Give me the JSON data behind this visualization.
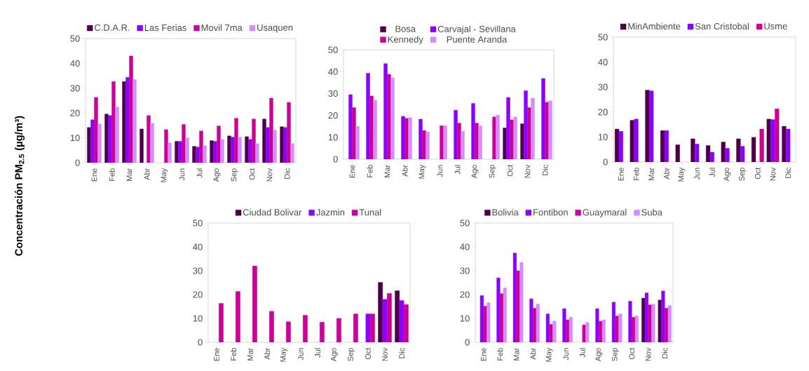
{
  "chart_data": [
    {
      "type": "bar",
      "ylabel": "Concentración PM$_{2.5}$ (µg/m³)",
      "categories": [
        "Ene",
        "Feb",
        "Mar",
        "Abr",
        "May",
        "Jun",
        "Jul",
        "Ago",
        "Sep",
        "Oct",
        "Nov",
        "Dic"
      ],
      "ylim": [
        0,
        50
      ],
      "yticks": [
        0,
        10,
        20,
        30,
        40,
        50
      ],
      "legend": "top",
      "series": [
        {
          "name": "C.D.A.R.",
          "color": "#4d0047",
          "values": [
            14.2,
            19.6,
            32.7,
            13.6,
            null,
            8.6,
            6.6,
            8.9,
            10.8,
            10.5,
            17.6,
            14.5
          ]
        },
        {
          "name": "Las Ferias",
          "color": "#8b00ff",
          "values": [
            17.3,
            19.0,
            34.4,
            null,
            null,
            8.6,
            6.3,
            8.6,
            10.3,
            9.4,
            14.2,
            14.2
          ]
        },
        {
          "name": "Movil 7ma",
          "color": "#cc0099",
          "values": [
            26.3,
            32.7,
            43.0,
            19.0,
            13.3,
            15.4,
            12.8,
            14.8,
            17.9,
            17.6,
            26.0,
            24.3
          ]
        },
        {
          "name": "Usaquen",
          "color": "#d68cff",
          "values": [
            15.6,
            22.4,
            33.5,
            15.9,
            8.0,
            10.0,
            6.9,
            9.4,
            10.3,
            7.7,
            13.1,
            7.7
          ]
        }
      ]
    },
    {
      "type": "bar",
      "categories": [
        "Ene",
        "Feb",
        "Mar",
        "Abr",
        "May",
        "Jun",
        "Jul",
        "Ago",
        "Sep",
        "Oct",
        "Nov",
        "Dic"
      ],
      "ylim": [
        0,
        50
      ],
      "yticks": [
        0,
        10,
        20,
        30,
        40,
        50
      ],
      "legend": "top",
      "series": [
        {
          "name": "Bosa",
          "color": "#4d0047",
          "values": [
            null,
            null,
            null,
            null,
            null,
            null,
            null,
            null,
            null,
            14.3,
            16.2,
            null
          ]
        },
        {
          "name": "Carvajal - Sevillana",
          "color": "#8b00ff",
          "values": [
            29.5,
            39.3,
            43.7,
            19.6,
            18.3,
            null,
            22.4,
            25.5,
            null,
            28.2,
            31.3,
            36.9
          ]
        },
        {
          "name": "Kennedy",
          "color": "#cc0099",
          "values": [
            23.6,
            28.9,
            38.8,
            18.7,
            13.1,
            15.3,
            16.5,
            16.5,
            19.3,
            18.0,
            23.6,
            26.0
          ]
        },
        {
          "name": "Puente Aranda",
          "color": "#d68cff",
          "values": [
            15.0,
            27.0,
            37.2,
            19.0,
            12.5,
            15.3,
            12.8,
            15.3,
            20.2,
            19.3,
            27.9,
            26.7
          ]
        }
      ]
    },
    {
      "type": "bar",
      "categories": [
        "Ene",
        "Feb",
        "Mar",
        "Abr",
        "May",
        "Jun",
        "Jul",
        "Ago",
        "Sep",
        "Oct",
        "Nov",
        "Dic"
      ],
      "ylim": [
        0,
        50
      ],
      "yticks": [
        0,
        10,
        20,
        30,
        40,
        50
      ],
      "legend": "top",
      "series": [
        {
          "name": "MinAmbiente",
          "color": "#4d0047",
          "values": [
            13.2,
            16.7,
            28.8,
            12.6,
            6.9,
            9.3,
            6.6,
            8.0,
            9.3,
            9.9,
            17.2,
            14.3
          ]
        },
        {
          "name": "San Cristobal",
          "color": "#8b00ff",
          "values": [
            12.3,
            17.2,
            28.5,
            12.6,
            null,
            7.2,
            3.9,
            5.5,
            6.3,
            null,
            17.0,
            13.2
          ]
        },
        {
          "name": "Usme",
          "color": "#cc0099",
          "values": [
            null,
            null,
            null,
            null,
            null,
            null,
            null,
            null,
            null,
            13.2,
            21.3,
            null
          ]
        }
      ]
    },
    {
      "type": "bar",
      "categories": [
        "Ene",
        "Feb",
        "Mar",
        "Abr",
        "May",
        "Jun",
        "Jul",
        "Ago",
        "Sep",
        "Oct",
        "Nov",
        "Dic"
      ],
      "ylim": [
        0,
        50
      ],
      "yticks": [
        0,
        10,
        20,
        30,
        40,
        50
      ],
      "legend": "top",
      "series": [
        {
          "name": "Ciudad Bolivar",
          "color": "#4d0047",
          "values": [
            null,
            null,
            null,
            null,
            null,
            null,
            null,
            null,
            null,
            null,
            25.1,
            21.6
          ]
        },
        {
          "name": "Jazmin",
          "color": "#8b00ff",
          "values": [
            null,
            null,
            null,
            null,
            null,
            null,
            null,
            null,
            null,
            11.9,
            18.0,
            17.5
          ]
        },
        {
          "name": "Tunal",
          "color": "#cc0099",
          "values": [
            16.3,
            21.3,
            32.0,
            13.0,
            8.6,
            11.3,
            8.4,
            10.0,
            11.9,
            11.9,
            20.5,
            15.8
          ]
        }
      ]
    },
    {
      "type": "bar",
      "categories": [
        "Ene",
        "Feb",
        "Mar",
        "Abr",
        "May",
        "Jun",
        "Jul",
        "Ago",
        "Sep",
        "Oct",
        "Nov",
        "Dic"
      ],
      "ylim": [
        0,
        50
      ],
      "yticks": [
        0,
        10,
        20,
        30,
        40,
        50
      ],
      "legend": "top",
      "series": [
        {
          "name": "Bolivia",
          "color": "#4d0047",
          "values": [
            null,
            null,
            null,
            null,
            null,
            null,
            null,
            null,
            null,
            null,
            18.5,
            17.7
          ]
        },
        {
          "name": "Fontibon",
          "color": "#8b00ff",
          "values": [
            19.6,
            27.0,
            37.4,
            18.2,
            11.9,
            14.1,
            null,
            14.1,
            16.8,
            17.2,
            20.7,
            21.5
          ]
        },
        {
          "name": "Guaymaral",
          "color": "#cc0099",
          "values": [
            15.1,
            20.4,
            30.0,
            14.3,
            7.5,
            9.4,
            7.3,
            8.8,
            11.0,
            10.5,
            15.7,
            14.3
          ]
        },
        {
          "name": "Suba",
          "color": "#d68cff",
          "values": [
            16.6,
            22.8,
            33.5,
            16.0,
            8.9,
            10.5,
            8.3,
            9.4,
            11.9,
            11.0,
            16.0,
            15.4
          ]
        }
      ]
    }
  ]
}
